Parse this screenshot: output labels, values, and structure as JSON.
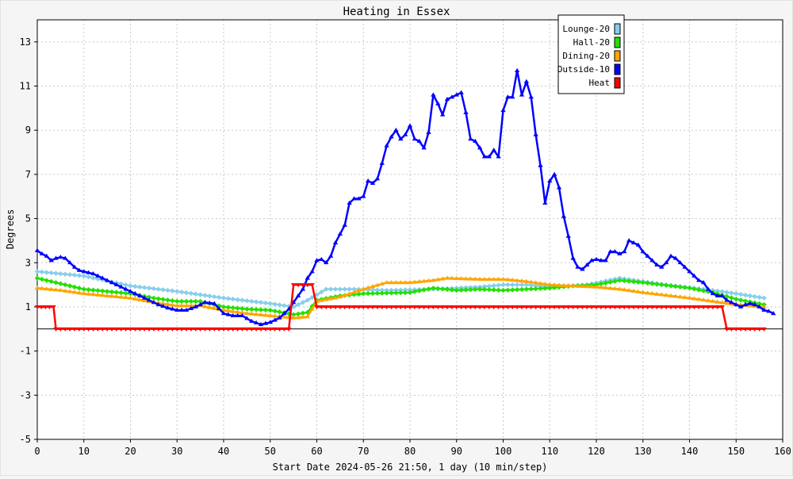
{
  "chart_data": {
    "type": "line",
    "title": "Heating in Essex",
    "xlabel": "Start Date 2024-05-26 21:50, 1 day (10 min/step)",
    "ylabel": "Degrees",
    "xlim": [
      0,
      160
    ],
    "ylim": [
      -5,
      14
    ],
    "x_ticks": [
      0,
      10,
      20,
      30,
      40,
      50,
      60,
      70,
      80,
      90,
      100,
      110,
      120,
      130,
      140,
      150,
      160
    ],
    "y_ticks": [
      -5,
      -3,
      -1,
      1,
      3,
      5,
      7,
      9,
      11,
      13
    ],
    "grid": true,
    "legend_position": "top-right",
    "series": [
      {
        "name": "Lounge-20",
        "color": "#87ceeb",
        "marker": "diamond",
        "points": [
          [
            0,
            2.6
          ],
          [
            10,
            2.4
          ],
          [
            20,
            1.95
          ],
          [
            30,
            1.7
          ],
          [
            40,
            1.4
          ],
          [
            50,
            1.15
          ],
          [
            55,
            1.0
          ],
          [
            58,
            1.3
          ],
          [
            62,
            1.8
          ],
          [
            68,
            1.8
          ],
          [
            75,
            1.75
          ],
          [
            85,
            1.8
          ],
          [
            95,
            1.9
          ],
          [
            100,
            2.0
          ],
          [
            105,
            2.0
          ],
          [
            110,
            1.9
          ],
          [
            118,
            2.0
          ],
          [
            125,
            2.3
          ],
          [
            135,
            2.0
          ],
          [
            145,
            1.75
          ],
          [
            150,
            1.6
          ],
          [
            156,
            1.4
          ]
        ]
      },
      {
        "name": "Hall-20",
        "color": "#22e000",
        "marker": "diamond",
        "points": [
          [
            0,
            2.3
          ],
          [
            5,
            2.05
          ],
          [
            10,
            1.8
          ],
          [
            20,
            1.6
          ],
          [
            25,
            1.4
          ],
          [
            30,
            1.25
          ],
          [
            35,
            1.25
          ],
          [
            40,
            1.0
          ],
          [
            45,
            0.9
          ],
          [
            50,
            0.85
          ],
          [
            55,
            0.65
          ],
          [
            58,
            0.75
          ],
          [
            60,
            1.3
          ],
          [
            65,
            1.5
          ],
          [
            70,
            1.6
          ],
          [
            80,
            1.65
          ],
          [
            85,
            1.85
          ],
          [
            90,
            1.75
          ],
          [
            95,
            1.8
          ],
          [
            100,
            1.75
          ],
          [
            105,
            1.8
          ],
          [
            110,
            1.85
          ],
          [
            115,
            1.95
          ],
          [
            120,
            2.0
          ],
          [
            125,
            2.2
          ],
          [
            130,
            2.1
          ],
          [
            140,
            1.85
          ],
          [
            145,
            1.65
          ],
          [
            150,
            1.35
          ],
          [
            156,
            1.1
          ]
        ]
      },
      {
        "name": "Dining-20",
        "color": "#ffa500",
        "marker": "triangle",
        "points": [
          [
            0,
            1.85
          ],
          [
            5,
            1.75
          ],
          [
            10,
            1.6
          ],
          [
            20,
            1.4
          ],
          [
            25,
            1.2
          ],
          [
            30,
            1.05
          ],
          [
            35,
            1.05
          ],
          [
            40,
            0.85
          ],
          [
            45,
            0.7
          ],
          [
            50,
            0.6
          ],
          [
            55,
            0.5
          ],
          [
            58,
            0.55
          ],
          [
            60,
            1.25
          ],
          [
            65,
            1.45
          ],
          [
            70,
            1.8
          ],
          [
            75,
            2.1
          ],
          [
            80,
            2.1
          ],
          [
            85,
            2.2
          ],
          [
            88,
            2.3
          ],
          [
            95,
            2.25
          ],
          [
            100,
            2.25
          ],
          [
            105,
            2.15
          ],
          [
            110,
            2.0
          ],
          [
            120,
            1.9
          ],
          [
            125,
            1.8
          ],
          [
            130,
            1.65
          ],
          [
            140,
            1.4
          ],
          [
            145,
            1.25
          ],
          [
            150,
            1.1
          ],
          [
            156,
            1.0
          ]
        ]
      },
      {
        "name": "Outside-10",
        "color": "#0000ff",
        "marker": "triangle",
        "points": [
          [
            0,
            3.55
          ],
          [
            1,
            3.4
          ],
          [
            2,
            3.3
          ],
          [
            3,
            3.1
          ],
          [
            4,
            3.2
          ],
          [
            5,
            3.25
          ],
          [
            6,
            3.2
          ],
          [
            7,
            3.0
          ],
          [
            8,
            2.8
          ],
          [
            9,
            2.65
          ],
          [
            10,
            2.6
          ],
          [
            11,
            2.55
          ],
          [
            12,
            2.5
          ],
          [
            14,
            2.3
          ],
          [
            16,
            2.1
          ],
          [
            18,
            1.9
          ],
          [
            20,
            1.7
          ],
          [
            22,
            1.5
          ],
          [
            24,
            1.3
          ],
          [
            26,
            1.1
          ],
          [
            28,
            0.95
          ],
          [
            30,
            0.85
          ],
          [
            32,
            0.85
          ],
          [
            34,
            1.0
          ],
          [
            36,
            1.2
          ],
          [
            38,
            1.15
          ],
          [
            40,
            0.7
          ],
          [
            42,
            0.6
          ],
          [
            44,
            0.6
          ],
          [
            46,
            0.35
          ],
          [
            48,
            0.2
          ],
          [
            50,
            0.3
          ],
          [
            52,
            0.5
          ],
          [
            54,
            0.9
          ],
          [
            55,
            1.2
          ],
          [
            57,
            1.8
          ],
          [
            58,
            2.3
          ],
          [
            59,
            2.6
          ],
          [
            60,
            3.1
          ],
          [
            61,
            3.15
          ],
          [
            62,
            3.0
          ],
          [
            63,
            3.3
          ],
          [
            64,
            3.9
          ],
          [
            65,
            4.3
          ],
          [
            66,
            4.7
          ],
          [
            67,
            5.7
          ],
          [
            68,
            5.9
          ],
          [
            69,
            5.9
          ],
          [
            70,
            6.0
          ],
          [
            71,
            6.7
          ],
          [
            72,
            6.6
          ],
          [
            73,
            6.8
          ],
          [
            74,
            7.5
          ],
          [
            75,
            8.3
          ],
          [
            76,
            8.7
          ],
          [
            77,
            9.0
          ],
          [
            78,
            8.6
          ],
          [
            79,
            8.8
          ],
          [
            80,
            9.2
          ],
          [
            81,
            8.6
          ],
          [
            82,
            8.5
          ],
          [
            83,
            8.2
          ],
          [
            84,
            8.9
          ],
          [
            85,
            10.6
          ],
          [
            86,
            10.2
          ],
          [
            87,
            9.7
          ],
          [
            88,
            10.4
          ],
          [
            89,
            10.5
          ],
          [
            90,
            10.6
          ],
          [
            91,
            10.7
          ],
          [
            92,
            9.8
          ],
          [
            93,
            8.6
          ],
          [
            94,
            8.5
          ],
          [
            95,
            8.2
          ],
          [
            96,
            7.8
          ],
          [
            97,
            7.8
          ],
          [
            98,
            8.1
          ],
          [
            99,
            7.8
          ],
          [
            100,
            9.9
          ],
          [
            101,
            10.5
          ],
          [
            102,
            10.5
          ],
          [
            103,
            11.7
          ],
          [
            104,
            10.6
          ],
          [
            105,
            11.2
          ],
          [
            106,
            10.5
          ],
          [
            107,
            8.8
          ],
          [
            108,
            7.4
          ],
          [
            109,
            5.7
          ],
          [
            110,
            6.7
          ],
          [
            111,
            7.0
          ],
          [
            112,
            6.4
          ],
          [
            113,
            5.1
          ],
          [
            114,
            4.2
          ],
          [
            115,
            3.2
          ],
          [
            116,
            2.8
          ],
          [
            117,
            2.7
          ],
          [
            118,
            2.9
          ],
          [
            119,
            3.1
          ],
          [
            120,
            3.15
          ],
          [
            121,
            3.1
          ],
          [
            122,
            3.1
          ],
          [
            123,
            3.5
          ],
          [
            124,
            3.5
          ],
          [
            125,
            3.4
          ],
          [
            126,
            3.5
          ],
          [
            127,
            4.0
          ],
          [
            128,
            3.9
          ],
          [
            129,
            3.8
          ],
          [
            130,
            3.5
          ],
          [
            131,
            3.3
          ],
          [
            132,
            3.1
          ],
          [
            133,
            2.9
          ],
          [
            134,
            2.8
          ],
          [
            135,
            3.0
          ],
          [
            136,
            3.3
          ],
          [
            137,
            3.2
          ],
          [
            138,
            3.0
          ],
          [
            139,
            2.8
          ],
          [
            140,
            2.6
          ],
          [
            141,
            2.4
          ],
          [
            142,
            2.2
          ],
          [
            143,
            2.1
          ],
          [
            144,
            1.8
          ],
          [
            145,
            1.6
          ],
          [
            146,
            1.5
          ],
          [
            147,
            1.5
          ],
          [
            148,
            1.3
          ],
          [
            149,
            1.2
          ],
          [
            150,
            1.1
          ],
          [
            151,
            1.0
          ],
          [
            152,
            1.1
          ],
          [
            153,
            1.15
          ],
          [
            154,
            1.1
          ],
          [
            155,
            1.0
          ],
          [
            156,
            0.85
          ],
          [
            157,
            0.8
          ],
          [
            158,
            0.7
          ]
        ]
      },
      {
        "name": "Heat",
        "color": "#ff0000",
        "marker": "triangle-down",
        "points": [
          [
            0,
            1
          ],
          [
            3.5,
            1
          ],
          [
            4,
            0
          ],
          [
            54,
            0
          ],
          [
            55,
            2
          ],
          [
            59,
            2
          ],
          [
            60,
            1
          ],
          [
            147,
            1
          ],
          [
            148,
            0
          ],
          [
            156,
            0
          ]
        ]
      }
    ]
  }
}
